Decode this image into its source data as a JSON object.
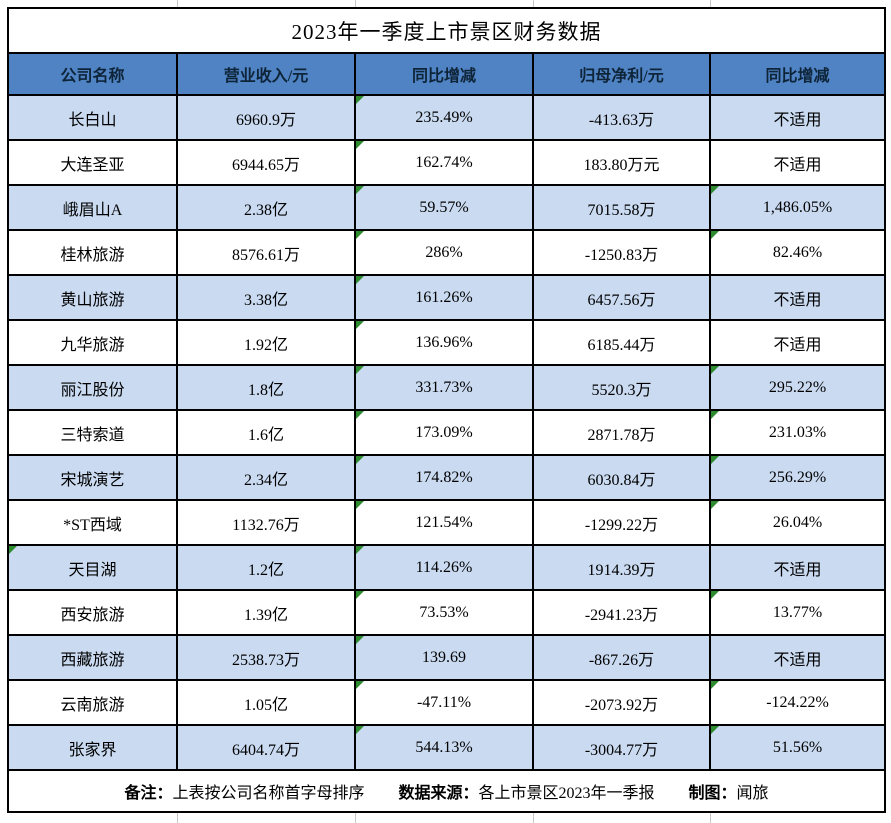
{
  "title": "2023年一季度上市景区财务数据",
  "colors": {
    "header_bg": "#4F83C3",
    "header_text": "#0E2439",
    "shaded_row_bg": "#C9DAF1",
    "plain_row_bg": "#FFFFFF",
    "border": "#000000",
    "outer_gridline": "#C9C9C9",
    "error_flag_green": "#2E8B2E"
  },
  "table": {
    "headers": [
      "公司名称",
      "营业收入/元",
      "同比增减",
      "归母净利/元",
      "同比增减"
    ],
    "rows": [
      {
        "cells": [
          "长白山",
          "6960.9万",
          "235.49%",
          "-413.63万",
          "不适用"
        ],
        "shaded": true,
        "error_flags": [
          2
        ]
      },
      {
        "cells": [
          "大连圣亚",
          "6944.65万",
          "162.74%",
          "183.80万元",
          "不适用"
        ],
        "shaded": false,
        "error_flags": [
          2
        ]
      },
      {
        "cells": [
          "峨眉山A",
          "2.38亿",
          "59.57%",
          "7015.58万",
          "1,486.05%"
        ],
        "shaded": true,
        "error_flags": [
          2,
          4
        ]
      },
      {
        "cells": [
          "桂林旅游",
          "8576.61万",
          "286%",
          "-1250.83万",
          "82.46%"
        ],
        "shaded": false,
        "error_flags": [
          2,
          4
        ]
      },
      {
        "cells": [
          "黄山旅游",
          "3.38亿",
          "161.26%",
          "6457.56万",
          "不适用"
        ],
        "shaded": true,
        "error_flags": [
          2
        ]
      },
      {
        "cells": [
          "九华旅游",
          "1.92亿",
          "136.96%",
          "6185.44万",
          "不适用"
        ],
        "shaded": false,
        "error_flags": [
          2
        ]
      },
      {
        "cells": [
          "丽江股份",
          "1.8亿",
          "331.73%",
          "5520.3万",
          "295.22%"
        ],
        "shaded": true,
        "error_flags": [
          2,
          4
        ]
      },
      {
        "cells": [
          "三特索道",
          "1.6亿",
          "173.09%",
          "2871.78万",
          "231.03%"
        ],
        "shaded": false,
        "error_flags": [
          2,
          4
        ]
      },
      {
        "cells": [
          "宋城演艺",
          "2.34亿",
          "174.82%",
          "6030.84万",
          "256.29%"
        ],
        "shaded": true,
        "error_flags": [
          2,
          4
        ]
      },
      {
        "cells": [
          "*ST西域",
          "1132.76万",
          "121.54%",
          "-1299.22万",
          "26.04%"
        ],
        "shaded": false,
        "error_flags": [
          2,
          4
        ]
      },
      {
        "cells": [
          "天目湖",
          "1.2亿",
          "114.26%",
          "1914.39万",
          "不适用"
        ],
        "shaded": true,
        "error_flags": [
          0,
          2
        ]
      },
      {
        "cells": [
          "西安旅游",
          "1.39亿",
          "73.53%",
          "-2941.23万",
          "13.77%"
        ],
        "shaded": false,
        "error_flags": [
          2,
          4
        ]
      },
      {
        "cells": [
          "西藏旅游",
          "2538.73万",
          "139.69",
          "-867.26万",
          "不适用"
        ],
        "shaded": true,
        "error_flags": [
          2
        ]
      },
      {
        "cells": [
          "云南旅游",
          "1.05亿",
          "-47.11%",
          "-2073.92万",
          "-124.22%"
        ],
        "shaded": false,
        "error_flags": [
          2,
          4
        ]
      },
      {
        "cells": [
          "张家界",
          "6404.74万",
          "544.13%",
          "-3004.77万",
          "51.56%"
        ],
        "shaded": true,
        "error_flags": [
          2,
          4
        ]
      }
    ]
  },
  "footer": {
    "note_label": "备注：",
    "note_text": "上表按公司名称首字母排序",
    "source_label": "数据来源：",
    "source_text": "各上市景区2023年一季报",
    "credit_label": "制图：",
    "credit_text": "闻旅"
  },
  "chart_data": {
    "type": "table",
    "title": "2023年一季度上市景区财务数据",
    "columns": [
      "公司名称",
      "营业收入/元",
      "同比增减",
      "归母净利/元",
      "同比增减"
    ],
    "rows": [
      [
        "长白山",
        "6960.9万",
        "235.49%",
        "-413.63万",
        "不适用"
      ],
      [
        "大连圣亚",
        "6944.65万",
        "162.74%",
        "183.80万元",
        "不适用"
      ],
      [
        "峨眉山A",
        "2.38亿",
        "59.57%",
        "7015.58万",
        "1,486.05%"
      ],
      [
        "桂林旅游",
        "8576.61万",
        "286%",
        "-1250.83万",
        "82.46%"
      ],
      [
        "黄山旅游",
        "3.38亿",
        "161.26%",
        "6457.56万",
        "不适用"
      ],
      [
        "九华旅游",
        "1.92亿",
        "136.96%",
        "6185.44万",
        "不适用"
      ],
      [
        "丽江股份",
        "1.8亿",
        "331.73%",
        "5520.3万",
        "295.22%"
      ],
      [
        "三特索道",
        "1.6亿",
        "173.09%",
        "2871.78万",
        "231.03%"
      ],
      [
        "宋城演艺",
        "2.34亿",
        "174.82%",
        "6030.84万",
        "256.29%"
      ],
      [
        "*ST西域",
        "1132.76万",
        "121.54%",
        "-1299.22万",
        "26.04%"
      ],
      [
        "天目湖",
        "1.2亿",
        "114.26%",
        "1914.39万",
        "不适用"
      ],
      [
        "西安旅游",
        "1.39亿",
        "73.53%",
        "-2941.23万",
        "13.77%"
      ],
      [
        "西藏旅游",
        "2538.73万",
        "139.69",
        "-867.26万",
        "不适用"
      ],
      [
        "云南旅游",
        "1.05亿",
        "-47.11%",
        "-2073.92万",
        "-124.22%"
      ],
      [
        "张家界",
        "6404.74万",
        "544.13%",
        "-3004.77万",
        "51.56%"
      ]
    ],
    "notes": "备注：上表按公司名称首字母排序 数据来源：各上市景区2023年一季报 制图：闻旅"
  }
}
